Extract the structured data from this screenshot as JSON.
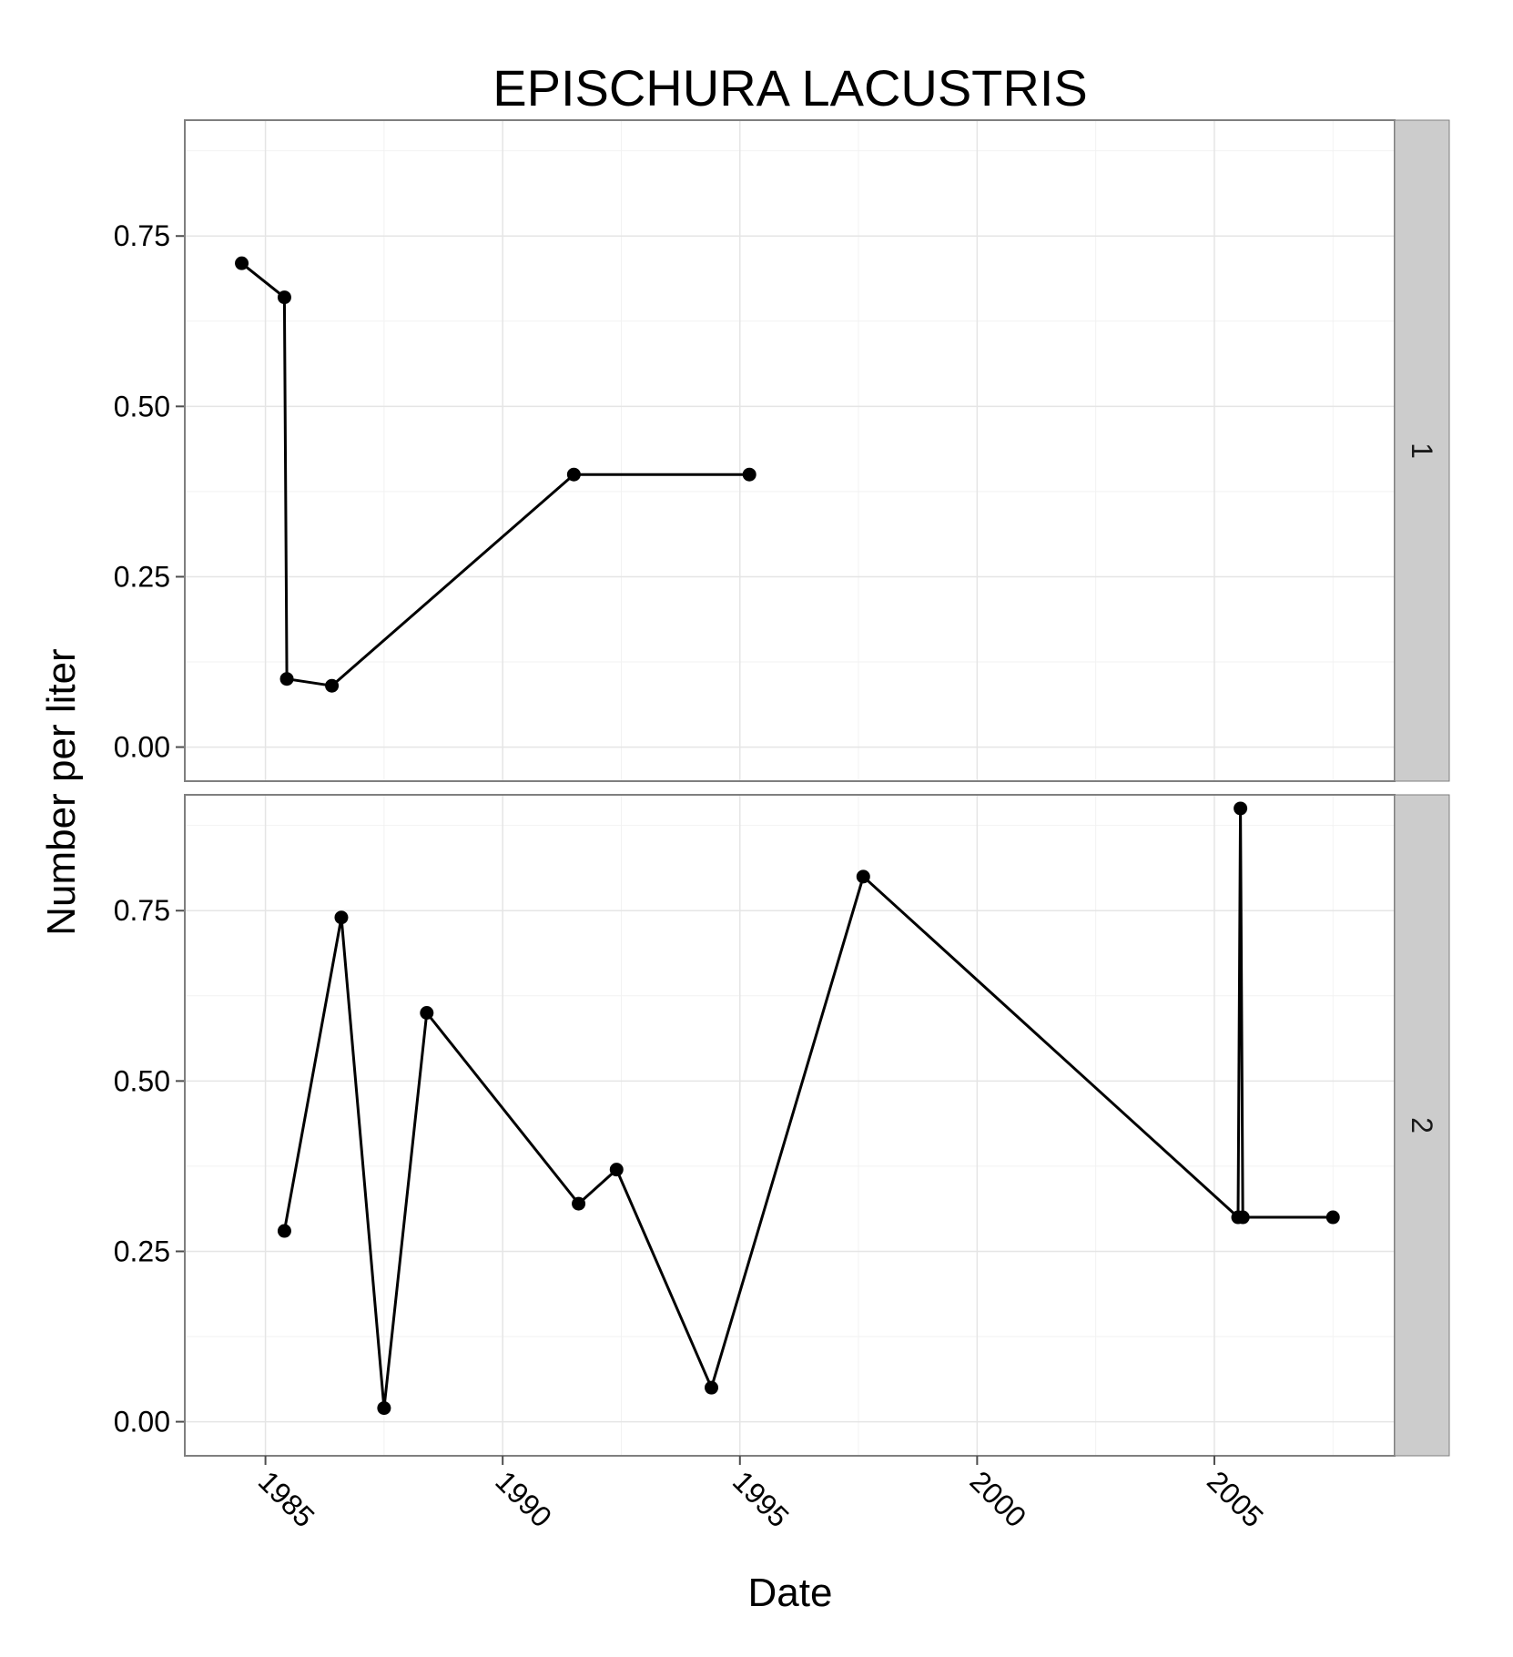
{
  "chart_data": {
    "type": "line",
    "title": "EPISCHURA LACUSTRIS",
    "xlabel": "Date",
    "ylabel": "Number per liter",
    "xlim": [
      1983.3,
      2008.8
    ],
    "ylim": [
      -0.05,
      0.92
    ],
    "x_ticks": [
      1985,
      1990,
      1995,
      2000,
      2005
    ],
    "x_tick_labels": [
      "1985",
      "1990",
      "1995",
      "2000",
      "2005"
    ],
    "y_ticks": [
      0,
      0.25,
      0.5,
      0.75
    ],
    "y_tick_labels": [
      "0.00",
      "0.25",
      "0.50",
      "0.75"
    ],
    "grid": true,
    "marker": "circle",
    "facet_variable": "site",
    "panels": [
      {
        "name": "1",
        "x": [
          1984.5,
          1985.4,
          1985.45,
          1986.4,
          1991.5,
          1995.2
        ],
        "y": [
          0.71,
          0.66,
          0.1,
          0.09,
          0.4,
          0.4
        ]
      },
      {
        "name": "2",
        "x": [
          1985.4,
          1986.6,
          1987.5,
          1988.4,
          1991.6,
          1992.4,
          1994.4,
          1997.6,
          2005.5,
          2005.55,
          2005.6,
          2007.5
        ],
        "y": [
          0.28,
          0.74,
          0.02,
          0.6,
          0.32,
          0.37,
          0.05,
          0.8,
          0.3,
          0.9,
          0.3,
          0.3
        ]
      }
    ]
  }
}
